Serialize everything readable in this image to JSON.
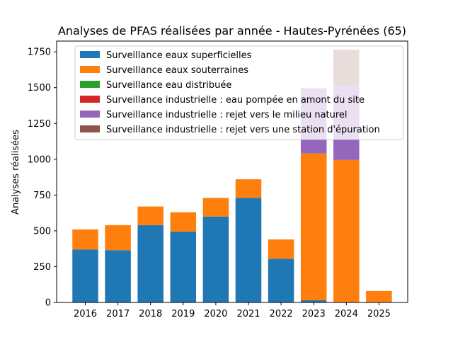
{
  "chart_data": {
    "type": "bar",
    "stacked": true,
    "title": "Analyses de PFAS réalisées par année - Hautes-Pyrénées (65)",
    "xlabel": "",
    "ylabel": "Analyses réalisées",
    "ylim": [
      0,
      1825
    ],
    "yticks": [
      0,
      250,
      500,
      750,
      1000,
      1250,
      1500,
      1750
    ],
    "legend_position": "top-left",
    "categories": [
      "2016",
      "2017",
      "2018",
      "2019",
      "2020",
      "2021",
      "2022",
      "2023",
      "2024",
      "2025"
    ],
    "series": [
      {
        "name": "Surveillance eaux superficielles",
        "color": "#1f77b4",
        "values": [
          370,
          365,
          540,
          495,
          600,
          730,
          305,
          15,
          0,
          0
        ]
      },
      {
        "name": "Surveillance eaux souterraines",
        "color": "#ff7f0e",
        "values": [
          140,
          175,
          130,
          135,
          130,
          130,
          135,
          1025,
          995,
          80
        ]
      },
      {
        "name": "Surveillance eau distribuée",
        "color": "#2ca02c",
        "values": [
          0,
          0,
          0,
          0,
          0,
          0,
          0,
          0,
          0,
          0
        ]
      },
      {
        "name": "Surveillance industrielle : eau pompée en amont du site",
        "color": "#d62728",
        "values": [
          0,
          0,
          0,
          0,
          0,
          0,
          0,
          0,
          0,
          0
        ]
      },
      {
        "name": "Surveillance industrielle : rejet vers le milieu naturel",
        "color": "#9467bd",
        "values": [
          0,
          0,
          0,
          0,
          0,
          0,
          0,
          455,
          520,
          0
        ]
      },
      {
        "name": "Surveillance industrielle : rejet vers une station d'épuration",
        "color": "#8c564b",
        "values": [
          0,
          0,
          0,
          0,
          0,
          0,
          0,
          0,
          250,
          0
        ]
      }
    ]
  }
}
